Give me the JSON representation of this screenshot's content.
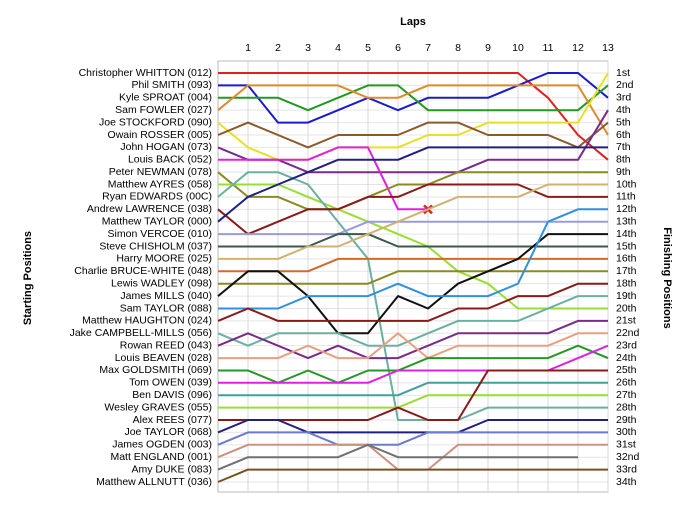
{
  "chart_data": {
    "type": "line",
    "title": "Laps",
    "y_label": "Starting Positions",
    "y2_label": "Finishing Positions",
    "x": [
      0,
      1,
      2,
      3,
      4,
      5,
      6,
      7,
      8,
      9,
      10,
      11,
      12,
      13
    ],
    "xlim": [
      0,
      13
    ],
    "xticks": [
      1,
      2,
      3,
      4,
      5,
      6,
      7,
      8,
      9,
      10,
      11,
      12,
      13
    ],
    "ylim": [
      1,
      34
    ],
    "y_inverted": true,
    "grid": true,
    "y2lim": [
      1,
      34
    ],
    "y2ticks": [
      {
        "value": 1,
        "label": "1st"
      },
      {
        "value": 2,
        "label": "2nd"
      },
      {
        "value": 3,
        "label": "3rd"
      },
      {
        "value": 4,
        "label": "4th"
      },
      {
        "value": 5,
        "label": "5th"
      },
      {
        "value": 6,
        "label": "6th"
      },
      {
        "value": 7,
        "label": "7th"
      },
      {
        "value": 8,
        "label": "8th"
      },
      {
        "value": 9,
        "label": "9th"
      },
      {
        "value": 10,
        "label": "10th"
      },
      {
        "value": 11,
        "label": "11th"
      },
      {
        "value": 12,
        "label": "12th"
      },
      {
        "value": 13,
        "label": "13th"
      },
      {
        "value": 14,
        "label": "14th"
      },
      {
        "value": 15,
        "label": "15th"
      },
      {
        "value": 16,
        "label": "16th"
      },
      {
        "value": 17,
        "label": "17th"
      },
      {
        "value": 18,
        "label": "18th"
      },
      {
        "value": 19,
        "label": "19th"
      },
      {
        "value": 20,
        "label": "20th"
      },
      {
        "value": 21,
        "label": "21st"
      },
      {
        "value": 22,
        "label": "22nd"
      },
      {
        "value": 23,
        "label": "23rd"
      },
      {
        "value": 24,
        "label": "24th"
      },
      {
        "value": 25,
        "label": "25th"
      },
      {
        "value": 26,
        "label": "26th"
      },
      {
        "value": 27,
        "label": "27th"
      },
      {
        "value": 28,
        "label": "28th"
      },
      {
        "value": 29,
        "label": "29th"
      },
      {
        "value": 30,
        "label": "30th"
      },
      {
        "value": 31,
        "label": "31st"
      },
      {
        "value": 32,
        "label": "32nd"
      },
      {
        "value": 33,
        "label": "33rd"
      },
      {
        "value": 34,
        "label": "34th"
      }
    ],
    "series": [
      {
        "name": "Christopher WHITTON (012)",
        "color": "#e02020",
        "values": [
          1,
          1,
          1,
          1,
          1,
          1,
          1,
          1,
          1,
          1,
          1,
          3,
          6,
          8
        ]
      },
      {
        "name": "Phil SMITH (093)",
        "color": "#1a1ad0",
        "values": [
          2,
          2,
          5,
          5,
          4,
          3,
          4,
          3,
          3,
          3,
          2,
          1,
          1,
          3
        ]
      },
      {
        "name": "Kyle SPROAT (004)",
        "color": "#229922",
        "values": [
          3,
          3,
          3,
          4,
          3,
          2,
          2,
          4,
          4,
          4,
          4,
          4,
          4,
          2
        ]
      },
      {
        "name": "Sam FOWLER (027)",
        "color": "#e08a2a",
        "values": [
          4,
          2,
          2,
          2,
          2,
          3,
          3,
          2,
          2,
          2,
          2,
          2,
          2,
          6
        ]
      },
      {
        "name": "Joe STOCKFORD (090)",
        "color": "#e8e020",
        "values": [
          5,
          7,
          8,
          8,
          7,
          7,
          7,
          6,
          6,
          5,
          5,
          5,
          5,
          1
        ]
      },
      {
        "name": "Owain ROSSER (005)",
        "color": "#8a5a2a",
        "values": [
          6,
          5,
          6,
          7,
          6,
          6,
          6,
          5,
          5,
          6,
          6,
          6,
          7,
          5
        ]
      },
      {
        "name": "John HOGAN (073)",
        "color": "#7a2a8a",
        "values": [
          7,
          8,
          8,
          9,
          9,
          9,
          9,
          9,
          9,
          8,
          8,
          8,
          8,
          4
        ]
      },
      {
        "name": "Louis BACK (052)",
        "color": "#e020e0",
        "marker": "x",
        "values": [
          8,
          8,
          8,
          8,
          7,
          7,
          12,
          12,
          null,
          null,
          null,
          null,
          null,
          null
        ]
      },
      {
        "name": "Peter NEWMAN (078)",
        "color": "#8a8a20",
        "values": [
          9,
          11,
          11,
          12,
          12,
          11,
          10,
          10,
          9,
          9,
          9,
          9,
          9,
          9
        ]
      },
      {
        "name": "Matthew AYRES (058)",
        "color": "#99dd33",
        "values": [
          10,
          10,
          10,
          11,
          12,
          13,
          14,
          15,
          17,
          18,
          20,
          20,
          20,
          20
        ]
      },
      {
        "name": "Ryan EDWARDS (00C)",
        "color": "#6ab0a0",
        "values": [
          11,
          9,
          9,
          10,
          13,
          16,
          29,
          29,
          29,
          28,
          28,
          28,
          28,
          28
        ]
      },
      {
        "name": "Andrew LAWRENCE (038)",
        "color": "#8a1a1a",
        "values": [
          12,
          14,
          13,
          12,
          12,
          11,
          11,
          10,
          10,
          10,
          10,
          11,
          11,
          11
        ]
      },
      {
        "name": "Matthew TAYLOR (000)",
        "color": "#202080",
        "values": [
          13,
          11,
          10,
          9,
          8,
          8,
          8,
          7,
          7,
          7,
          7,
          7,
          7,
          7
        ]
      },
      {
        "name": "Simon VERCOE (010)",
        "color": "#9a9ae0",
        "values": [
          14,
          14,
          14,
          14,
          14,
          13,
          13,
          13,
          13,
          13,
          13,
          13,
          13,
          13
        ]
      },
      {
        "name": "Steve CHISHOLM (037)",
        "color": "#3a5a4a",
        "values": [
          15,
          15,
          15,
          15,
          14,
          14,
          15,
          15,
          15,
          15,
          15,
          15,
          15,
          15
        ]
      },
      {
        "name": "Harry MOORE (025)",
        "color": "#d2b070",
        "values": [
          16,
          16,
          16,
          15,
          15,
          14,
          13,
          12,
          11,
          11,
          11,
          10,
          10,
          10
        ]
      },
      {
        "name": "Charlie BRUCE-WHITE (048)",
        "color": "#d06a2a",
        "values": [
          17,
          17,
          17,
          17,
          16,
          16,
          16,
          16,
          16,
          16,
          16,
          16,
          16,
          16
        ]
      },
      {
        "name": "Lewis WADLEY (098)",
        "color": "#8a8a20",
        "values": [
          18,
          18,
          18,
          18,
          18,
          18,
          17,
          17,
          17,
          17,
          17,
          17,
          17,
          17
        ]
      },
      {
        "name": "James MILLS (040)",
        "color": "#101010",
        "values": [
          19,
          17,
          17,
          19,
          22,
          22,
          19,
          20,
          18,
          17,
          16,
          14,
          14,
          14
        ]
      },
      {
        "name": "Sam TAYLOR (088)",
        "color": "#3090e0",
        "values": [
          20,
          20,
          20,
          19,
          19,
          19,
          18,
          19,
          19,
          19,
          18,
          13,
          12,
          12
        ]
      },
      {
        "name": "Matthew HAUGHTON (024)",
        "color": "#8a1a1a",
        "values": [
          21,
          20,
          21,
          21,
          21,
          21,
          21,
          21,
          20,
          20,
          19,
          19,
          18,
          18
        ]
      },
      {
        "name": "Jake CAMPBELL-MILLS (056)",
        "color": "#6ab0a0",
        "values": [
          22,
          23,
          22,
          22,
          22,
          23,
          23,
          22,
          21,
          21,
          21,
          20,
          19,
          19
        ]
      },
      {
        "name": "Rowan REED (043)",
        "color": "#7a2a8a",
        "values": [
          23,
          22,
          23,
          24,
          23,
          24,
          24,
          23,
          22,
          22,
          22,
          22,
          21,
          21
        ]
      },
      {
        "name": "Louis BEAVEN (028)",
        "color": "#e8a080",
        "values": [
          24,
          24,
          24,
          23,
          24,
          24,
          22,
          24,
          23,
          23,
          23,
          23,
          22,
          22
        ]
      },
      {
        "name": "Max GOLDSMITH (069)",
        "color": "#229922",
        "values": [
          25,
          25,
          26,
          25,
          26,
          25,
          25,
          24,
          24,
          24,
          24,
          24,
          23,
          24
        ]
      },
      {
        "name": "Tom OWEN (039)",
        "color": "#e020e0",
        "values": [
          26,
          26,
          26,
          26,
          26,
          26,
          25,
          25,
          25,
          25,
          25,
          25,
          24,
          23
        ]
      },
      {
        "name": "Ben DAVIS (096)",
        "color": "#40a0a0",
        "values": [
          27,
          27,
          27,
          27,
          27,
          27,
          27,
          26,
          26,
          26,
          26,
          26,
          26,
          26
        ]
      },
      {
        "name": "Wesley GRAVES (055)",
        "color": "#99dd33",
        "values": [
          28,
          28,
          28,
          28,
          28,
          28,
          28,
          27,
          27,
          27,
          27,
          27,
          27,
          27
        ]
      },
      {
        "name": "Alex REES (077)",
        "color": "#8a1a1a",
        "values": [
          29,
          29,
          29,
          29,
          29,
          29,
          28,
          29,
          29,
          25,
          25,
          25,
          25,
          25
        ]
      },
      {
        "name": "Joe TAYLOR (068)",
        "color": "#202080",
        "values": [
          30,
          29,
          29,
          30,
          30,
          30,
          30,
          30,
          30,
          29,
          29,
          29,
          29,
          29
        ]
      },
      {
        "name": "James OGDEN (003)",
        "color": "#6a7ad0",
        "values": [
          31,
          30,
          30,
          30,
          31,
          31,
          31,
          30,
          30,
          30,
          30,
          30,
          30,
          30
        ]
      },
      {
        "name": "Matt ENGLAND (001)",
        "color": "#d09080",
        "values": [
          32,
          31,
          31,
          31,
          31,
          31,
          33,
          33,
          31,
          31,
          31,
          31,
          31,
          31
        ]
      },
      {
        "name": "Amy DUKE (083)",
        "color": "#707070",
        "values": [
          33,
          32,
          32,
          32,
          32,
          31,
          32,
          32,
          32,
          32,
          32,
          32,
          32,
          null
        ]
      },
      {
        "name": "Matthew ALLNUTT (036)",
        "color": "#7a5020",
        "values": [
          34,
          33,
          33,
          33,
          33,
          33,
          33,
          33,
          33,
          33,
          33,
          33,
          33,
          33
        ]
      }
    ]
  }
}
